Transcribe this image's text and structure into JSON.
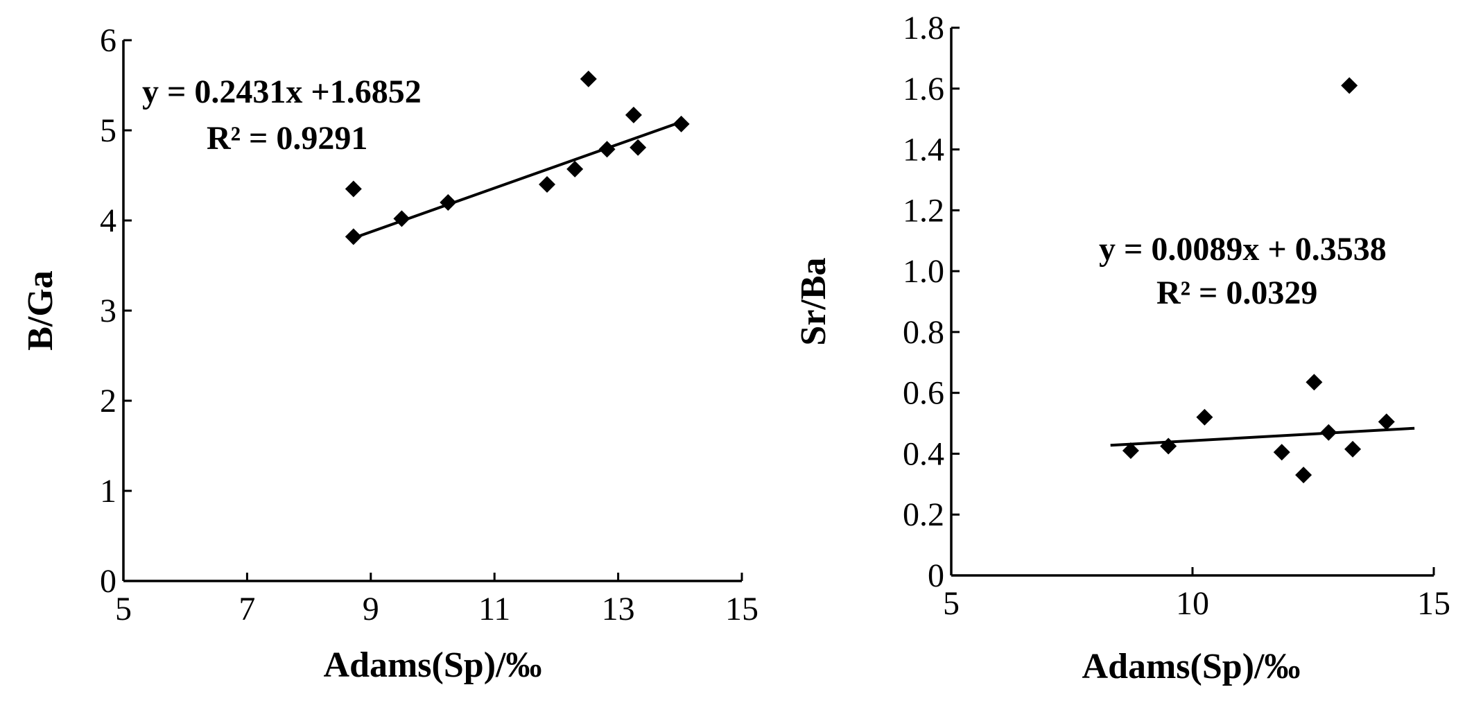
{
  "chart_data": [
    {
      "type": "scatter",
      "xlabel": "Adams(Sp)/‰",
      "ylabel": "B/Ga",
      "xlim": [
        5,
        15
      ],
      "ylim": [
        0,
        6
      ],
      "xticks": [
        "5",
        "7",
        "9",
        "11",
        "13",
        "15"
      ],
      "yticks": [
        "0",
        "1",
        "2",
        "3",
        "4",
        "5",
        "6"
      ],
      "series": [
        {
          "points": [
            {
              "x": 8.72,
              "y": 4.35
            },
            {
              "x": 8.72,
              "y": 3.82
            },
            {
              "x": 9.5,
              "y": 4.02
            },
            {
              "x": 10.25,
              "y": 4.2
            },
            {
              "x": 11.85,
              "y": 4.4
            },
            {
              "x": 12.3,
              "y": 4.57
            },
            {
              "x": 12.52,
              "y": 5.57
            },
            {
              "x": 12.82,
              "y": 4.79
            },
            {
              "x": 13.25,
              "y": 5.17
            },
            {
              "x": 13.32,
              "y": 4.81
            },
            {
              "x": 14.02,
              "y": 5.07
            }
          ]
        }
      ],
      "trendline": {
        "slope": 0.2431,
        "intercept": 1.6852,
        "x_start": 8.72,
        "x_end": 14.02
      },
      "equation": "y = 0.2431x +1.6852",
      "r2": "R² = 0.9291"
    },
    {
      "type": "scatter",
      "xlabel": "Adams(Sp)/‰",
      "ylabel": "Sr/Ba",
      "xlim": [
        5,
        15
      ],
      "ylim": [
        0,
        1.8
      ],
      "xticks": [
        "5",
        "10",
        "15"
      ],
      "yticks": [
        "0",
        "0.2",
        "0.4",
        "0.6",
        "0.8",
        "1.0",
        "1.2",
        "1.4",
        "1.6",
        "1.8"
      ],
      "series": [
        {
          "points": [
            {
              "x": 8.72,
              "y": 0.41
            },
            {
              "x": 9.5,
              "y": 0.425
            },
            {
              "x": 10.25,
              "y": 0.52
            },
            {
              "x": 11.85,
              "y": 0.405
            },
            {
              "x": 12.3,
              "y": 0.33
            },
            {
              "x": 12.52,
              "y": 0.635
            },
            {
              "x": 12.82,
              "y": 0.47
            },
            {
              "x": 13.25,
              "y": 1.61
            },
            {
              "x": 13.32,
              "y": 0.415
            },
            {
              "x": 14.02,
              "y": 0.505
            }
          ]
        }
      ],
      "trendline": {
        "slope": 0.0089,
        "intercept": 0.3538,
        "x_start": 8.3,
        "x_end": 14.6
      },
      "equation": "y = 0.0089x + 0.3538",
      "r2": "R² = 0.0329"
    }
  ]
}
